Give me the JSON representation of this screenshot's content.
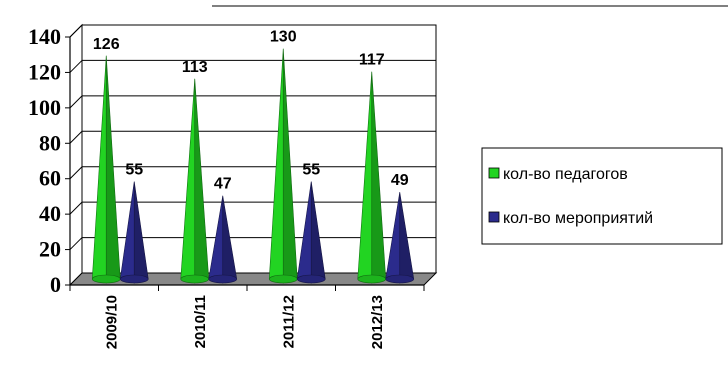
{
  "chart_data": {
    "type": "bar",
    "categories": [
      "2009/10",
      "2010/11",
      "2011/12",
      "2012/13"
    ],
    "series": [
      {
        "name": "кол-во педагогов",
        "values": [
          126,
          113,
          130,
          117
        ],
        "color": "#22d422"
      },
      {
        "name": "кол-во мероприятий",
        "values": [
          55,
          47,
          55,
          49
        ],
        "color": "#2b2b8c"
      }
    ],
    "ylim": [
      0,
      140
    ],
    "yticks": [
      "0",
      "20",
      "40",
      "60",
      "80",
      "100",
      "120",
      "140"
    ],
    "grid": true,
    "legend": "right",
    "bar_shape": "cone",
    "floor_color": "#888888"
  }
}
